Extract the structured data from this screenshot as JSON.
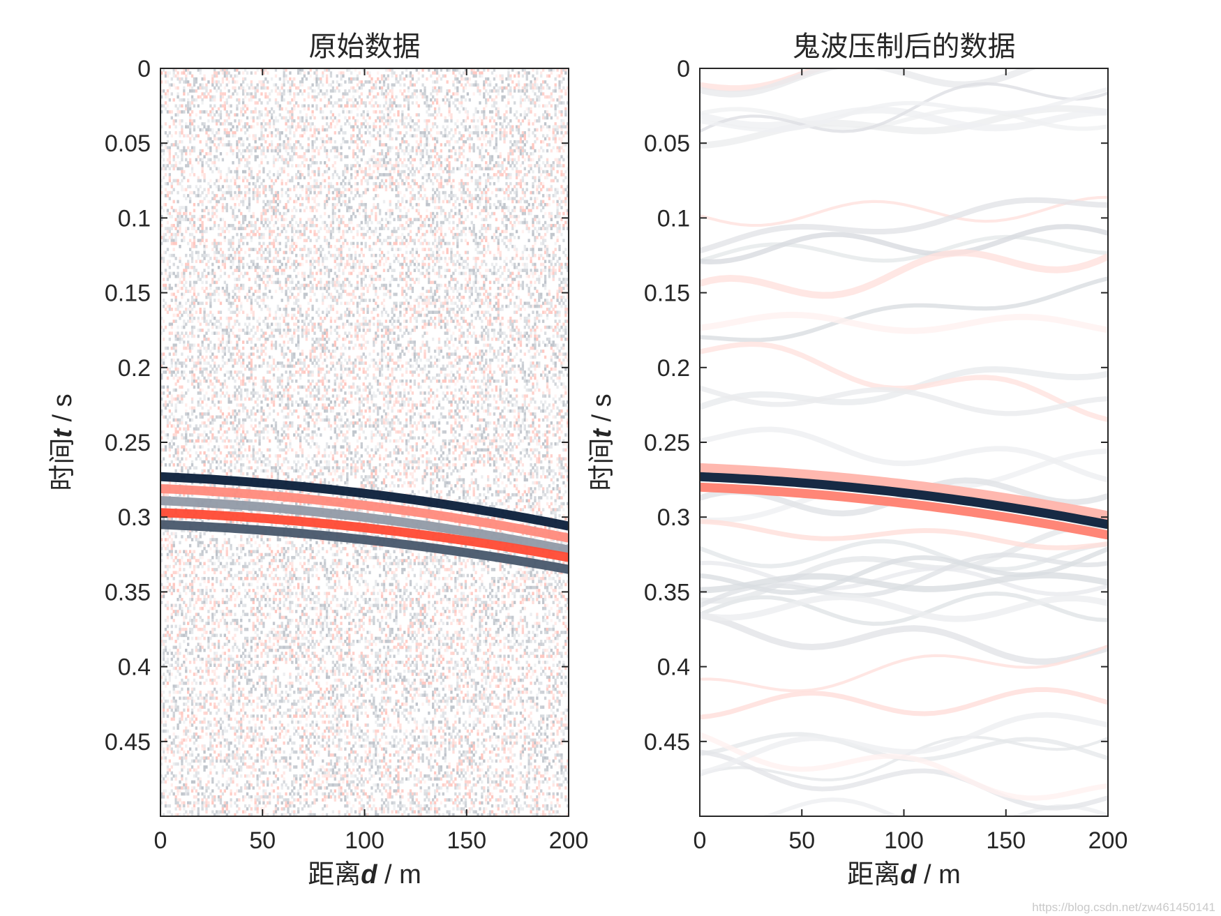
{
  "chart_data": [
    {
      "type": "heatmap",
      "title": "原始数据",
      "xlabel_prefix": "距离",
      "xlabel_var": "d",
      "xlabel_unit": " / m",
      "ylabel_prefix": "时间",
      "ylabel_var": "t",
      "ylabel_unit": " / s",
      "xlim": [
        0,
        200
      ],
      "ylim": [
        0,
        0.5
      ],
      "y_reversed": true,
      "x_ticks": [
        "0",
        "50",
        "100",
        "150",
        "200"
      ],
      "y_ticks": [
        "0",
        "0.05",
        "0.1",
        "0.15",
        "0.2",
        "0.25",
        "0.3",
        "0.35",
        "0.4",
        "0.45"
      ],
      "colormap": {
        "negative": "#0b1f3a",
        "mid": "#ffffff",
        "positive": "#ff2a10"
      },
      "events": [
        {
          "amplitude": -1.0,
          "t_at_0": 0.273,
          "t_at_200": 0.306
        },
        {
          "amplitude": 0.55,
          "t_at_0": 0.281,
          "t_at_200": 0.314
        },
        {
          "amplitude": -0.45,
          "t_at_0": 0.289,
          "t_at_200": 0.322
        },
        {
          "amplitude": 0.85,
          "t_at_0": 0.297,
          "t_at_200": 0.327
        },
        {
          "amplitude": -0.75,
          "t_at_0": 0.305,
          "t_at_200": 0.335
        }
      ],
      "noise_level": "high"
    },
    {
      "type": "heatmap",
      "title": "鬼波压制后的数据",
      "xlabel_prefix": "距离",
      "xlabel_var": "d",
      "xlabel_unit": " / m",
      "ylabel_prefix": "时间",
      "ylabel_var": "t",
      "ylabel_unit": " / s",
      "xlim": [
        0,
        200
      ],
      "ylim": [
        0,
        0.5
      ],
      "y_reversed": true,
      "x_ticks": [
        "0",
        "50",
        "100",
        "150",
        "200"
      ],
      "y_ticks": [
        "0",
        "0.05",
        "0.1",
        "0.15",
        "0.2",
        "0.25",
        "0.3",
        "0.35",
        "0.4",
        "0.45"
      ],
      "colormap": {
        "negative": "#0b1f3a",
        "mid": "#ffffff",
        "positive": "#ff2a10"
      },
      "events": [
        {
          "amplitude": 0.35,
          "t_at_0": 0.267,
          "t_at_200": 0.299
        },
        {
          "amplitude": -1.0,
          "t_at_0": 0.273,
          "t_at_200": 0.305
        },
        {
          "amplitude": 0.6,
          "t_at_0": 0.28,
          "t_at_200": 0.312
        }
      ],
      "noise_level": "smooth"
    }
  ],
  "watermark": "https://blog.csdn.net/zw461450141"
}
